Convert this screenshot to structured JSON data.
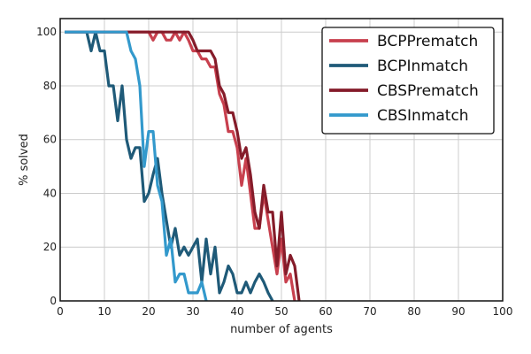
{
  "chart_data": {
    "type": "line",
    "xlabel": "number of agents",
    "ylabel": "% solved",
    "xlim": [
      0,
      100
    ],
    "ylim": [
      0,
      105
    ],
    "xticks": [
      0,
      10,
      20,
      30,
      40,
      50,
      60,
      70,
      80,
      90,
      100
    ],
    "yticks": [
      0,
      20,
      40,
      60,
      80,
      100
    ],
    "grid": true,
    "legend_position": "top-right",
    "series": [
      {
        "name": "BCPPrematch",
        "color": "#c8404e",
        "points": [
          [
            1,
            100
          ],
          [
            5,
            100
          ],
          [
            10,
            100
          ],
          [
            15,
            100
          ],
          [
            20,
            100
          ],
          [
            21,
            97
          ],
          [
            22,
            100
          ],
          [
            23,
            100
          ],
          [
            24,
            97
          ],
          [
            25,
            97
          ],
          [
            26,
            100
          ],
          [
            27,
            97
          ],
          [
            28,
            100
          ],
          [
            29,
            97
          ],
          [
            30,
            93
          ],
          [
            31,
            93
          ],
          [
            32,
            90
          ],
          [
            33,
            90
          ],
          [
            34,
            87
          ],
          [
            35,
            87
          ],
          [
            36,
            77
          ],
          [
            37,
            73
          ],
          [
            38,
            63
          ],
          [
            39,
            63
          ],
          [
            40,
            57
          ],
          [
            41,
            43
          ],
          [
            42,
            53
          ],
          [
            43,
            40
          ],
          [
            44,
            27
          ],
          [
            45,
            27
          ],
          [
            46,
            40
          ],
          [
            47,
            30
          ],
          [
            48,
            20
          ],
          [
            49,
            10
          ],
          [
            50,
            23
          ],
          [
            51,
            7
          ],
          [
            52,
            10
          ],
          [
            53,
            0
          ]
        ]
      },
      {
        "name": "BCPInmatch",
        "color": "#1f5a78",
        "points": [
          [
            1,
            100
          ],
          [
            6,
            100
          ],
          [
            7,
            93
          ],
          [
            8,
            100
          ],
          [
            9,
            93
          ],
          [
            10,
            93
          ],
          [
            11,
            80
          ],
          [
            12,
            80
          ],
          [
            13,
            67
          ],
          [
            14,
            80
          ],
          [
            15,
            60
          ],
          [
            16,
            53
          ],
          [
            17,
            57
          ],
          [
            18,
            57
          ],
          [
            19,
            37
          ],
          [
            20,
            40
          ],
          [
            21,
            47
          ],
          [
            22,
            53
          ],
          [
            23,
            40
          ],
          [
            24,
            30
          ],
          [
            25,
            20
          ],
          [
            26,
            27
          ],
          [
            27,
            17
          ],
          [
            28,
            20
          ],
          [
            29,
            17
          ],
          [
            30,
            20
          ],
          [
            31,
            23
          ],
          [
            32,
            7
          ],
          [
            33,
            23
          ],
          [
            34,
            10
          ],
          [
            35,
            20
          ],
          [
            36,
            3
          ],
          [
            37,
            7
          ],
          [
            38,
            13
          ],
          [
            39,
            10
          ],
          [
            40,
            3
          ],
          [
            41,
            3
          ],
          [
            42,
            7
          ],
          [
            43,
            3
          ],
          [
            44,
            7
          ],
          [
            45,
            10
          ],
          [
            46,
            7
          ],
          [
            47,
            3
          ],
          [
            48,
            0
          ]
        ]
      },
      {
        "name": "CBSPrematch",
        "color": "#851c2a",
        "points": [
          [
            1,
            100
          ],
          [
            5,
            100
          ],
          [
            10,
            100
          ],
          [
            15,
            100
          ],
          [
            20,
            100
          ],
          [
            25,
            100
          ],
          [
            26,
            100
          ],
          [
            27,
            100
          ],
          [
            28,
            100
          ],
          [
            29,
            100
          ],
          [
            30,
            97
          ],
          [
            31,
            93
          ],
          [
            32,
            93
          ],
          [
            33,
            93
          ],
          [
            34,
            93
          ],
          [
            35,
            90
          ],
          [
            36,
            80
          ],
          [
            37,
            77
          ],
          [
            38,
            70
          ],
          [
            39,
            70
          ],
          [
            40,
            63
          ],
          [
            41,
            53
          ],
          [
            42,
            57
          ],
          [
            43,
            47
          ],
          [
            44,
            33
          ],
          [
            45,
            27
          ],
          [
            46,
            43
          ],
          [
            47,
            33
          ],
          [
            48,
            33
          ],
          [
            49,
            13
          ],
          [
            50,
            33
          ],
          [
            51,
            10
          ],
          [
            52,
            17
          ],
          [
            53,
            13
          ],
          [
            54,
            0
          ]
        ]
      },
      {
        "name": "CBSInmatch",
        "color": "#3399cc",
        "points": [
          [
            1,
            100
          ],
          [
            5,
            100
          ],
          [
            10,
            100
          ],
          [
            14,
            100
          ],
          [
            15,
            100
          ],
          [
            16,
            93
          ],
          [
            17,
            90
          ],
          [
            18,
            80
          ],
          [
            19,
            50
          ],
          [
            20,
            63
          ],
          [
            21,
            63
          ],
          [
            22,
            43
          ],
          [
            23,
            37
          ],
          [
            24,
            17
          ],
          [
            25,
            23
          ],
          [
            26,
            7
          ],
          [
            27,
            10
          ],
          [
            28,
            10
          ],
          [
            29,
            3
          ],
          [
            30,
            3
          ],
          [
            31,
            3
          ],
          [
            32,
            7
          ],
          [
            33,
            0
          ]
        ]
      }
    ]
  }
}
